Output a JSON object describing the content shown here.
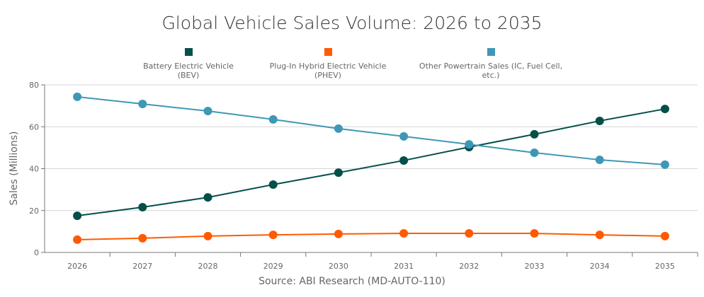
{
  "chart_data": {
    "type": "line",
    "title": "Global Vehicle Sales Volume: 2026 to 2035",
    "xlabel": "",
    "ylabel": "Sales (Millions)",
    "source": "Source: ABI Research (MD-AUTO-110)",
    "categories": [
      "2026",
      "2027",
      "2028",
      "2029",
      "2030",
      "2031",
      "2032",
      "2033",
      "2034",
      "2035"
    ],
    "ylim": [
      0,
      80
    ],
    "yticks": [
      0,
      20,
      40,
      60,
      80
    ],
    "grid": true,
    "legend_position": "top",
    "series": [
      {
        "name": "Battery Electric Vehicle (BEV)",
        "color": "#03504a",
        "values": [
          17.5,
          21.6,
          26.3,
          32.4,
          38.1,
          43.9,
          50.3,
          56.4,
          62.8,
          68.5
        ]
      },
      {
        "name": "Plug-In Hybrid Electric Vehicle (PHEV)",
        "color": "#ff5a00",
        "values": [
          6.1,
          6.8,
          7.8,
          8.4,
          8.8,
          9.1,
          9.1,
          9.1,
          8.4,
          7.8
        ]
      },
      {
        "name": "Other Powertrain Sales (IC, Fuel Cell, etc.)",
        "color": "#3f97b6",
        "values": [
          74.3,
          70.9,
          67.5,
          63.5,
          59.1,
          55.4,
          51.6,
          47.6,
          44.2,
          41.9
        ]
      }
    ]
  }
}
